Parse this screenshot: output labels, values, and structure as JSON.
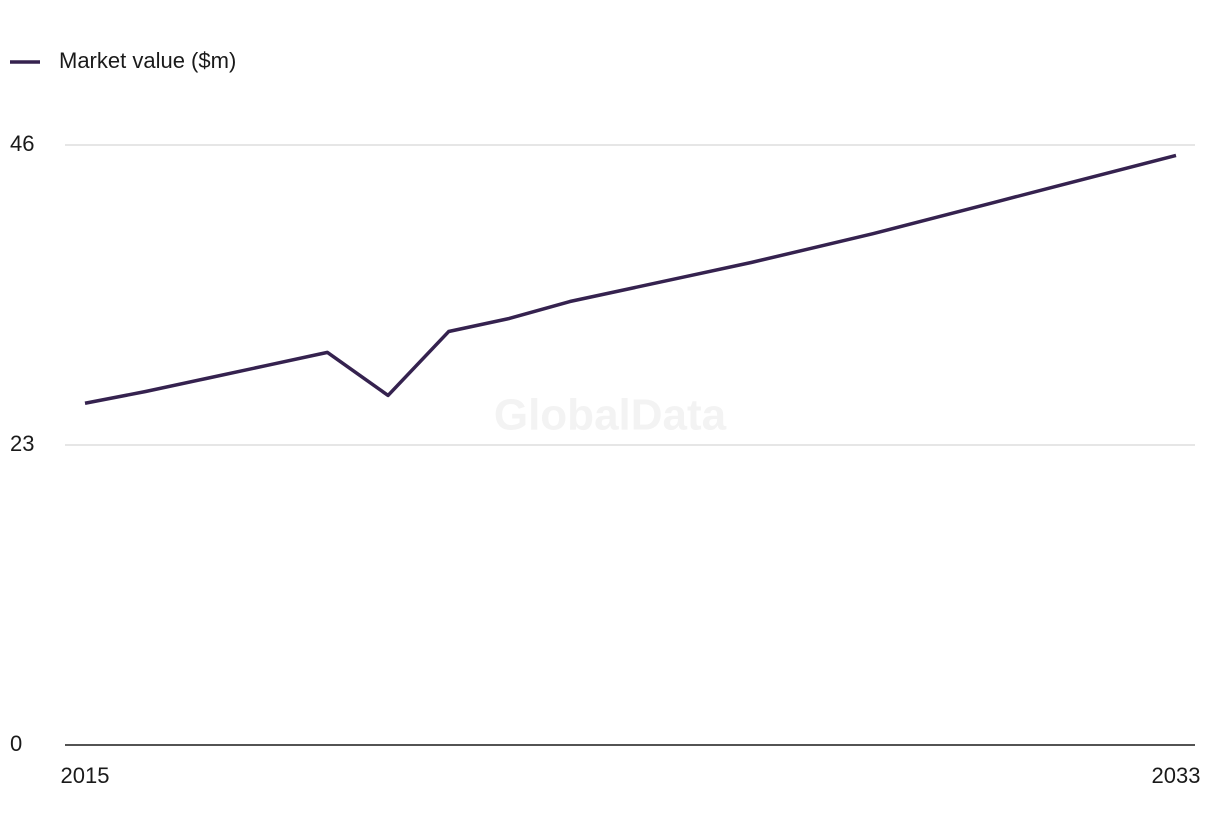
{
  "chart_data": {
    "type": "line",
    "legend": "top-left",
    "watermark": "GlobalData",
    "x": [
      2015,
      2016,
      2017,
      2018,
      2019,
      2020,
      2021,
      2022,
      2023,
      2024,
      2025,
      2026,
      2027,
      2028,
      2029,
      2030,
      2031,
      2032,
      2033
    ],
    "series": [
      {
        "name": "Market value ($m)",
        "color": "#35224f",
        "values": [
          26.2,
          27.1,
          28.1,
          29.1,
          30.1,
          26.8,
          31.7,
          32.7,
          34.0,
          35.0,
          36.0,
          37.0,
          38.1,
          39.2,
          40.4,
          41.6,
          42.8,
          44.0,
          45.2
        ]
      }
    ],
    "xlim": [
      2015,
      2033
    ],
    "xticks": [
      2015,
      2033
    ],
    "ylim": [
      0,
      46
    ],
    "yticks": [
      0,
      23,
      46
    ],
    "grid": true
  }
}
